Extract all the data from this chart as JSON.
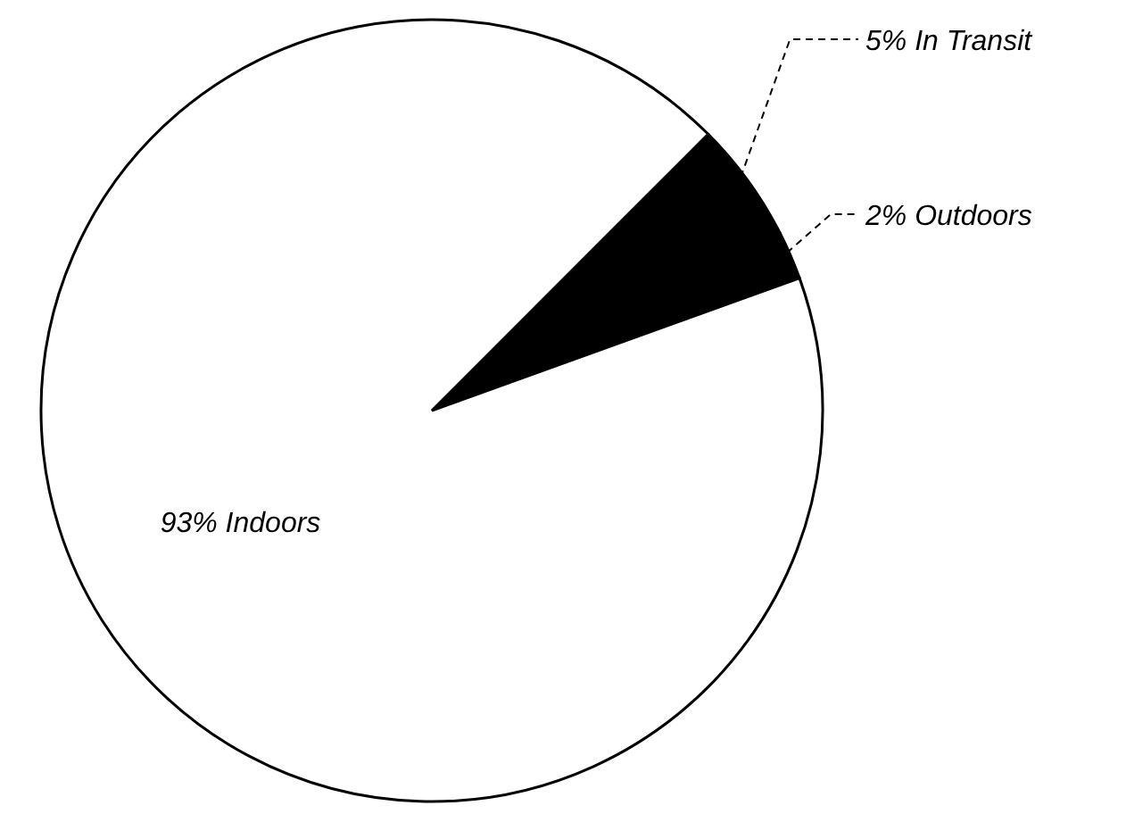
{
  "chart_data": {
    "type": "pie",
    "categories": [
      "In Transit",
      "Outdoors",
      "Indoors"
    ],
    "values": [
      5,
      2,
      93
    ],
    "value_labels": [
      "5%",
      "2%",
      "93%"
    ],
    "colors": [
      "#000000",
      "#000000",
      "#ffffff"
    ]
  }
}
